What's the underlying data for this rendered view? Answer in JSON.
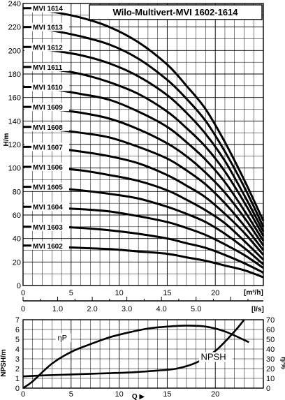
{
  "chart_data": [
    {
      "type": "line",
      "title": "Wilo-Multivert-MVI 1602-1614",
      "ylabel": "H/m",
      "xlabel_top": "[m³/h]",
      "xlabel_bottom": "[l/s]",
      "xlim": [
        0,
        25
      ],
      "ylim": [
        0,
        240
      ],
      "x_ticks": [
        "0",
        "5",
        "10",
        "15",
        "20"
      ],
      "y_ticks": [
        "0",
        "20",
        "40",
        "60",
        "80",
        "100",
        "120",
        "140",
        "160",
        "180",
        "200",
        "220",
        "240"
      ],
      "ls_ticks": [
        "0",
        "1.0",
        "2.0",
        "3.0",
        "4.0",
        "5.0"
      ],
      "series": [
        {
          "name": "MVI 1614",
          "x": [
            0,
            3,
            6,
            9,
            12,
            15,
            17,
            19,
            21,
            23,
            25
          ],
          "y": [
            236,
            233,
            228,
            220,
            207,
            188,
            170,
            150,
            122,
            90,
            55
          ]
        },
        {
          "name": "MVI 1613",
          "x": [
            0,
            3,
            6,
            9,
            12,
            15,
            17,
            19,
            21,
            23,
            25
          ],
          "y": [
            220,
            217,
            212,
            205,
            193,
            175,
            159,
            140,
            114,
            84,
            50
          ]
        },
        {
          "name": "MVI 1612",
          "x": [
            0,
            3,
            6,
            9,
            12,
            15,
            17,
            19,
            21,
            23,
            25
          ],
          "y": [
            203,
            200,
            196,
            189,
            178,
            162,
            147,
            129,
            106,
            77,
            46
          ]
        },
        {
          "name": "MVI 1611",
          "x": [
            0,
            3,
            6,
            9,
            12,
            15,
            17,
            19,
            21,
            23,
            25
          ],
          "y": [
            186,
            184,
            180,
            173,
            163,
            148,
            134,
            118,
            97,
            71,
            42
          ]
        },
        {
          "name": "MVI 1610",
          "x": [
            0,
            3,
            6,
            9,
            12,
            15,
            17,
            19,
            21,
            23,
            25
          ],
          "y": [
            169,
            167,
            163,
            158,
            148,
            135,
            122,
            107,
            88,
            64,
            38
          ]
        },
        {
          "name": "MVI 1609",
          "x": [
            0,
            3,
            6,
            9,
            12,
            15,
            17,
            19,
            21,
            23,
            25
          ],
          "y": [
            152,
            150,
            147,
            142,
            133,
            121,
            110,
            96,
            79,
            58,
            34
          ]
        },
        {
          "name": "MVI 1608",
          "x": [
            0,
            3,
            6,
            9,
            12,
            15,
            17,
            19,
            21,
            23,
            25
          ],
          "y": [
            135,
            133,
            130,
            126,
            118,
            108,
            98,
            86,
            70,
            51,
            30
          ]
        },
        {
          "name": "MVI 1607",
          "x": [
            0,
            3,
            6,
            9,
            12,
            15,
            17,
            19,
            21,
            23,
            25
          ],
          "y": [
            118,
            117,
            114,
            110,
            104,
            94,
            85,
            75,
            61,
            45,
            26
          ]
        },
        {
          "name": "MVI 1606",
          "x": [
            0,
            3,
            6,
            9,
            12,
            15,
            17,
            19,
            21,
            23,
            25
          ],
          "y": [
            101,
            100,
            98,
            94,
            89,
            81,
            73,
            64,
            53,
            38,
            22
          ]
        },
        {
          "name": "MVI 1605",
          "x": [
            0,
            3,
            6,
            9,
            12,
            15,
            17,
            19,
            21,
            23,
            25
          ],
          "y": [
            84,
            83,
            81,
            78,
            74,
            67,
            61,
            54,
            44,
            32,
            18
          ]
        },
        {
          "name": "MVI 1604",
          "x": [
            0,
            3,
            6,
            9,
            12,
            15,
            17,
            19,
            21,
            23,
            25
          ],
          "y": [
            67,
            66,
            65,
            63,
            59,
            54,
            49,
            43,
            35,
            26,
            15
          ]
        },
        {
          "name": "MVI 1603",
          "x": [
            0,
            3,
            6,
            9,
            12,
            15,
            17,
            19,
            21,
            23,
            25
          ],
          "y": [
            50,
            50,
            49,
            47,
            44,
            40,
            36,
            32,
            26,
            19,
            11
          ]
        },
        {
          "name": "MVI 1602",
          "x": [
            0,
            3,
            6,
            9,
            12,
            15,
            17,
            19,
            21,
            23,
            25
          ],
          "y": [
            34,
            33,
            32,
            31,
            29,
            27,
            24,
            21,
            17,
            13,
            7
          ]
        }
      ]
    },
    {
      "type": "line",
      "xlabel": "Q ▶",
      "ylabel": "NPSH/m",
      "y2label": "η/%",
      "xlim": [
        0,
        25
      ],
      "ylim": [
        0,
        7
      ],
      "y2lim": [
        0,
        70
      ],
      "x_ticks": [
        "0",
        "5",
        "10",
        "15",
        "20"
      ],
      "y_ticks": [
        "0",
        "1",
        "2",
        "3",
        "4",
        "5",
        "6",
        "7"
      ],
      "y2_ticks": [
        "0",
        "10",
        "20",
        "30",
        "40",
        "50",
        "60",
        "70"
      ],
      "series": [
        {
          "name": "ηP",
          "axis": "right",
          "x": [
            0,
            1,
            3,
            5,
            7,
            9,
            11,
            13,
            15,
            17,
            19,
            21,
            23.5
          ],
          "y": [
            0,
            7,
            25,
            37,
            45,
            52,
            57,
            61,
            63,
            64,
            63,
            58,
            47
          ]
        },
        {
          "name": "NPSH",
          "axis": "left",
          "x": [
            0,
            2,
            5,
            8,
            11,
            14,
            16,
            18,
            20,
            22,
            23
          ],
          "y": [
            1.2,
            1.3,
            1.4,
            1.5,
            1.6,
            1.8,
            2.0,
            2.6,
            3.8,
            5.8,
            7.0
          ]
        }
      ]
    }
  ]
}
